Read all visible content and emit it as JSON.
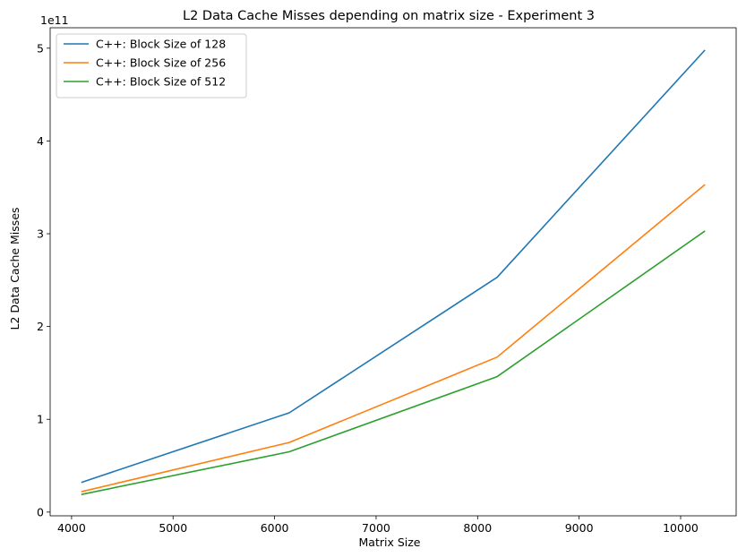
{
  "chart_data": {
    "type": "line",
    "title": "L2 Data Cache Misses depending on matrix size - Experiment 3",
    "xlabel": "Matrix Size",
    "ylabel": "L2 Data Cache Misses",
    "y_offset_label": "1e11",
    "x": [
      4096,
      6144,
      8192,
      10240
    ],
    "xlim": [
      3789,
      10547
    ],
    "ylim": [
      -0.04,
      5.22
    ],
    "x_ticks": [
      4000,
      5000,
      6000,
      7000,
      8000,
      9000,
      10000
    ],
    "y_ticks": [
      0,
      1,
      2,
      3,
      4,
      5
    ],
    "grid": false,
    "legend_position": "top-left",
    "series": [
      {
        "name": "C++: Block Size of 128",
        "color": "#1f77b4",
        "values": [
          0.32,
          1.07,
          2.53,
          4.98
        ]
      },
      {
        "name": "C++: Block Size of 256",
        "color": "#ff7f0e",
        "values": [
          0.22,
          0.75,
          1.67,
          3.53
        ]
      },
      {
        "name": "C++: Block Size of 512",
        "color": "#2ca02c",
        "values": [
          0.19,
          0.65,
          1.46,
          3.03
        ]
      }
    ]
  }
}
